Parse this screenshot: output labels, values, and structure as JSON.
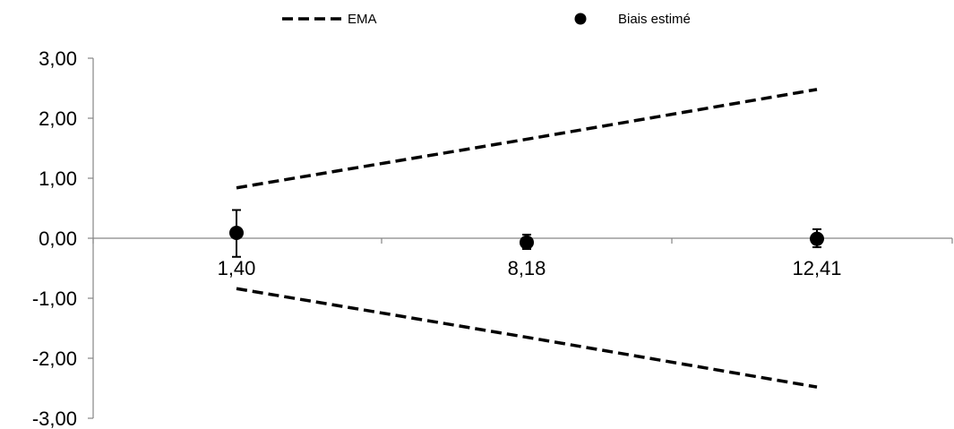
{
  "chart_data": {
    "type": "scatter",
    "title": "",
    "xlabel": "",
    "ylabel": "",
    "categories": [
      "1,40",
      "8,18",
      "12,41"
    ],
    "ylim": [
      -3.0,
      3.0
    ],
    "y_ticks": [
      "3,00",
      "2,00",
      "1,00",
      "0,00",
      "-1,00",
      "-2,00",
      "-3,00"
    ],
    "grid": false,
    "legend_position": "top",
    "series": [
      {
        "name": "EMA",
        "kind": "dashed-line",
        "color": "#000000",
        "upper": [
          0.84,
          1.65,
          2.48
        ],
        "lower": [
          -0.84,
          -1.65,
          -2.48
        ]
      },
      {
        "name": "Biais estimé",
        "kind": "point-with-error",
        "color": "#000000",
        "values": [
          0.09,
          -0.07,
          -0.01
        ],
        "error_low": [
          -0.31,
          -0.18,
          -0.15
        ],
        "error_high": [
          0.47,
          0.06,
          0.15
        ]
      }
    ]
  }
}
